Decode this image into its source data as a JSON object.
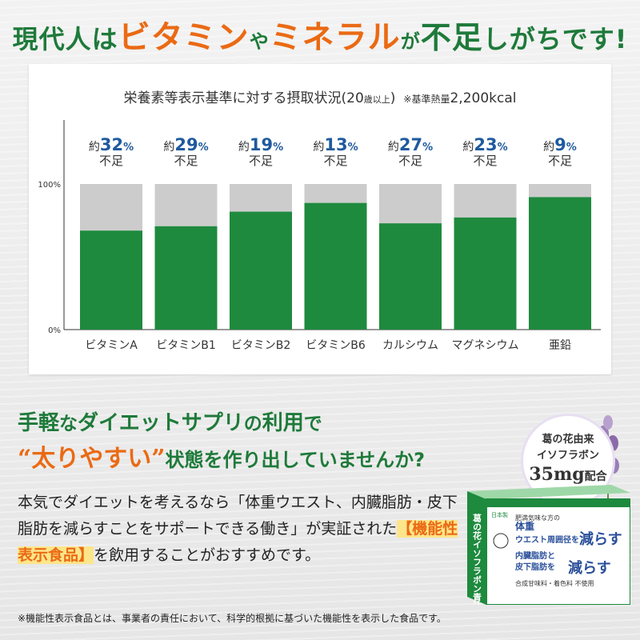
{
  "headline": {
    "part1": "現代人は",
    "vitamin": "ビタミン",
    "ya": "や",
    "mineral": "ミネラル",
    "ga": "が",
    "fusoku": "不足",
    "tail": "しがちです!"
  },
  "chart_header": {
    "main": "栄養素等表示基準に対する摂取状況(20",
    "age_small": "歳以上",
    "close": ")",
    "note_prefix": "※基準熱量",
    "note_value": "2,200kcal"
  },
  "chart_data": {
    "type": "bar",
    "stacked": true,
    "categories": [
      "ビタミンA",
      "ビタミンB1",
      "ビタミンB2",
      "ビタミンB6",
      "カルシウム",
      "マグネシウム",
      "亜鉛"
    ],
    "series": [
      {
        "values": [
          68,
          71,
          81,
          87,
          73,
          77,
          91
        ],
        "color": "#1e8a3e"
      },
      {
        "values": [
          32,
          29,
          19,
          13,
          27,
          23,
          9
        ],
        "color": "#cccccc"
      }
    ],
    "shortfall_labels": [
      "約32%",
      "約29%",
      "約19%",
      "約13%",
      "約27%",
      "約23%",
      "約9%"
    ],
    "shortfall_prefix": "約",
    "shortfall_percent": [
      32,
      29,
      19,
      13,
      27,
      23,
      9
    ],
    "shortfall_word": "不足",
    "ytick_labels": [
      "0%",
      "100%"
    ],
    "ylim": [
      0,
      100
    ],
    "title": "栄養素等表示基準に対する摂取状況(20歳以上)",
    "xlabel": "",
    "ylabel": ""
  },
  "sub1": {
    "a": "手軽",
    "b": "な",
    "c": "ダイエットサプリ",
    "d": "の",
    "e": "利用",
    "f": "で"
  },
  "sub2": {
    "quote": "“太りやすい”",
    "rest": "状態を作り出していませんか?"
  },
  "body": {
    "p1": "本気でダイエットを考えるなら「体重ウエスト、内臓脂肪・皮下脂肪を減らすことをサポートできる働き」が実証された",
    "highlight": "【機能性表示食品】",
    "p2": "を飲用することがおすすめです。"
  },
  "footnote": "※機能性表示食品とは、事業者の責任において、科学的根拠に基づいた機能性を表示した食品です。",
  "badge": {
    "line1": "葛の花由来",
    "line2": "イソフラボン",
    "amount": "35mg",
    "suffix": "配合"
  },
  "product": {
    "spine": "葛の花イソフラボン青汁",
    "label_top": "日本製",
    "claim1": "肥満気味な方の",
    "claim2": "体重",
    "claim3": "ウエスト周囲径を",
    "claim_reduce": "減らす",
    "claim4": "内臓脂肪と",
    "claim5": "皮下脂肪を",
    "claim6": "合成甘味料・着色料 不使用",
    "colors": {
      "green": "#1e8a3e",
      "accent": "#2a4f9a"
    }
  },
  "colors": {
    "green": "#1e7a3a",
    "orange": "#ea6a14",
    "blue": "#1f5a9e",
    "gray_bar": "#cccccc"
  }
}
